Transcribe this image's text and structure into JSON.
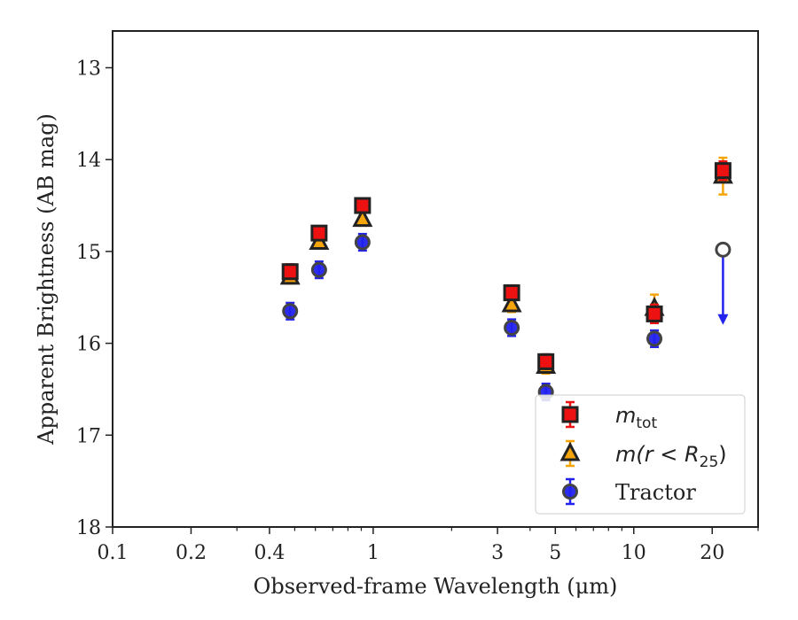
{
  "chart_data": {
    "type": "scatter",
    "xlabel": "Observed-frame Wavelength (μm)",
    "ylabel": "Apparent Brightness (AB mag)",
    "x_scale": "log",
    "y_inverted": true,
    "xlim": [
      0.1,
      30
    ],
    "ylim": [
      18,
      12.6
    ],
    "x_ticks": [
      0.1,
      0.2,
      0.4,
      1,
      3,
      5,
      10,
      20
    ],
    "x_tick_labels": [
      "0.1",
      "0.2",
      "0.4",
      "1",
      "3",
      "5",
      "10",
      "20"
    ],
    "y_ticks": [
      13,
      14,
      15,
      16,
      17,
      18
    ],
    "y_tick_labels": [
      "13",
      "14",
      "15",
      "16",
      "17",
      "18"
    ],
    "grid": false,
    "legend_position": "bottom-right",
    "series": [
      {
        "name": "m_tot",
        "marker": "square",
        "color": "#ee1111",
        "edge": "#222222",
        "points": [
          {
            "x": 0.48,
            "y": 15.22,
            "err": 0.08
          },
          {
            "x": 0.62,
            "y": 14.8,
            "err": 0.07
          },
          {
            "x": 0.91,
            "y": 14.5,
            "err": 0.07
          },
          {
            "x": 3.4,
            "y": 15.45,
            "err": 0.08
          },
          {
            "x": 4.6,
            "y": 16.2,
            "err": 0.08
          },
          {
            "x": 12.0,
            "y": 15.68,
            "err": 0.1
          },
          {
            "x": 22.0,
            "y": 14.12,
            "err": 0.1
          }
        ]
      },
      {
        "name": "m(r < R25)",
        "marker": "triangle",
        "color": "#f5a40a",
        "edge": "#222222",
        "points": [
          {
            "x": 0.48,
            "y": 15.28,
            "err": 0.07
          },
          {
            "x": 0.62,
            "y": 14.9,
            "err": 0.07
          },
          {
            "x": 0.91,
            "y": 14.65,
            "err": 0.07
          },
          {
            "x": 3.4,
            "y": 15.58,
            "err": 0.08
          },
          {
            "x": 4.6,
            "y": 16.25,
            "err": 0.08
          },
          {
            "x": 12.0,
            "y": 15.62,
            "err": 0.15
          },
          {
            "x": 22.0,
            "y": 14.18,
            "err": 0.2
          }
        ]
      },
      {
        "name": "Tractor",
        "marker": "circle",
        "color": "#2222ee",
        "edge": "#444444",
        "points": [
          {
            "x": 0.48,
            "y": 15.65,
            "err": 0.09
          },
          {
            "x": 0.62,
            "y": 15.2,
            "err": 0.09
          },
          {
            "x": 0.91,
            "y": 14.9,
            "err": 0.09
          },
          {
            "x": 3.4,
            "y": 15.83,
            "err": 0.09
          },
          {
            "x": 4.6,
            "y": 16.53,
            "err": 0.09
          },
          {
            "x": 12.0,
            "y": 15.95,
            "err": 0.09
          },
          {
            "x": 22.0,
            "y": 14.98,
            "upper_limit_to": 15.78
          }
        ]
      }
    ],
    "legend": [
      {
        "label_main": "m",
        "label_sub": "tot",
        "label_suffix": ""
      },
      {
        "label_main": "m(r < R",
        "label_sub": "25",
        "label_suffix": ")"
      },
      {
        "label_main": "Tractor",
        "label_sub": "",
        "label_suffix": ""
      }
    ]
  }
}
